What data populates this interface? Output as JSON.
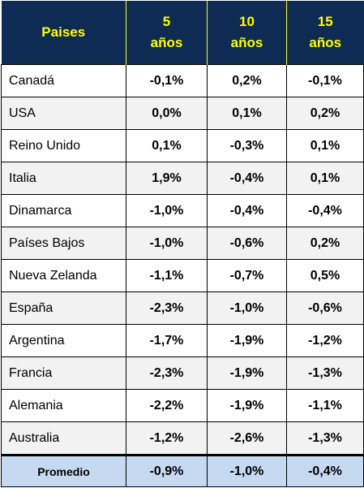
{
  "colors": {
    "header_background": "#0e2b54",
    "header_text": "#ffff00",
    "footer_background": "#c5d9f1",
    "row_alt_background": "#f2f2f2"
  },
  "header": {
    "country": "Paises",
    "col5": {
      "line1": "5",
      "line2": "años"
    },
    "col10": {
      "line1": "10",
      "line2": "años"
    },
    "col15": {
      "line1": "15",
      "line2": "años"
    }
  },
  "rows": [
    {
      "country": "Canadá",
      "y5": "-0,1%",
      "y10": "0,2%",
      "y15": "-0,1%"
    },
    {
      "country": "USA",
      "y5": "0,0%",
      "y10": "0,1%",
      "y15": "0,2%"
    },
    {
      "country": "Reino Unido",
      "y5": "0,1%",
      "y10": "-0,3%",
      "y15": "0,1%"
    },
    {
      "country": "Italia",
      "y5": "1,9%",
      "y10": "-0,4%",
      "y15": "0,1%"
    },
    {
      "country": "Dinamarca",
      "y5": "-1,0%",
      "y10": "-0,4%",
      "y15": "-0,4%"
    },
    {
      "country": "Países Bajos",
      "y5": "-1,0%",
      "y10": "-0,6%",
      "y15": "0,2%"
    },
    {
      "country": "Nueva Zelanda",
      "y5": "-1,1%",
      "y10": "-0,7%",
      "y15": "0,5%"
    },
    {
      "country": "España",
      "y5": "-2,3%",
      "y10": "-1,0%",
      "y15": "-0,6%"
    },
    {
      "country": "Argentina",
      "y5": "-1,7%",
      "y10": "-1,9%",
      "y15": "-1,2%"
    },
    {
      "country": "Francia",
      "y5": "-2,3%",
      "y10": "-1,9%",
      "y15": "-1,3%"
    },
    {
      "country": "Alemania",
      "y5": "-2,2%",
      "y10": "-1,9%",
      "y15": "-1,1%"
    },
    {
      "country": "Australia",
      "y5": "-1,2%",
      "y10": "-2,6%",
      "y15": "-1,3%"
    }
  ],
  "footer": {
    "label": "Promedio",
    "y5": "-0,9%",
    "y10": "-1,0%",
    "y15": "-0,4%"
  }
}
